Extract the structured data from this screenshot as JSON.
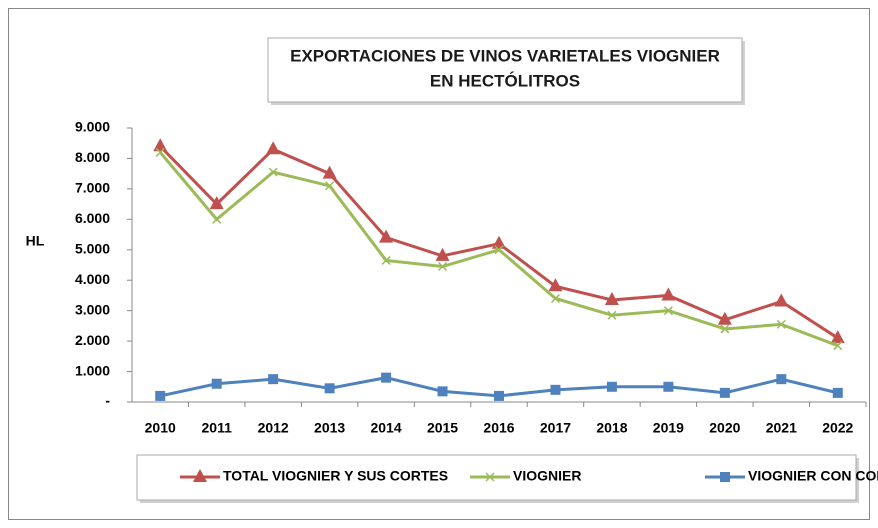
{
  "chart_data": {
    "type": "line",
    "title": [
      "EXPORTACIONES DE VINOS VARIETALES VIOGNIER",
      "EN HECTÓLITROS"
    ],
    "y_label": "HL",
    "categories": [
      "2010",
      "2011",
      "2012",
      "2013",
      "2014",
      "2015",
      "2016",
      "2017",
      "2018",
      "2019",
      "2020",
      "2021",
      "2022"
    ],
    "series": [
      {
        "name": "TOTAL VIOGNIER Y SUS CORTES",
        "color": "#c0504d",
        "marker": "triangle",
        "values": [
          8400,
          6500,
          8300,
          7500,
          5400,
          4800,
          5200,
          3800,
          3350,
          3500,
          2700,
          3300,
          2100
        ]
      },
      {
        "name": "VIOGNIER",
        "color": "#9bbb59",
        "marker": "x",
        "values": [
          8200,
          6000,
          7550,
          7100,
          4650,
          4450,
          5000,
          3400,
          2850,
          3000,
          2400,
          2550,
          1850
        ]
      },
      {
        "name": "VIOGNIER CON CORTES",
        "color": "#4f81bd",
        "marker": "square",
        "values": [
          200,
          600,
          750,
          450,
          800,
          350,
          200,
          400,
          500,
          500,
          300,
          750,
          300
        ]
      }
    ],
    "ylim": [
      0,
      9000
    ],
    "yticks": [
      {
        "value": 0,
        "label": "-"
      },
      {
        "value": 1000,
        "label": "1.000"
      },
      {
        "value": 2000,
        "label": "2.000"
      },
      {
        "value": 3000,
        "label": "3.000"
      },
      {
        "value": 4000,
        "label": "4.000"
      },
      {
        "value": 5000,
        "label": "5.000"
      },
      {
        "value": 6000,
        "label": "6.000"
      },
      {
        "value": 7000,
        "label": "7.000"
      },
      {
        "value": 8000,
        "label": "8.000"
      },
      {
        "value": 9000,
        "label": "9.000"
      }
    ],
    "grid": false,
    "legend": "bottom"
  }
}
